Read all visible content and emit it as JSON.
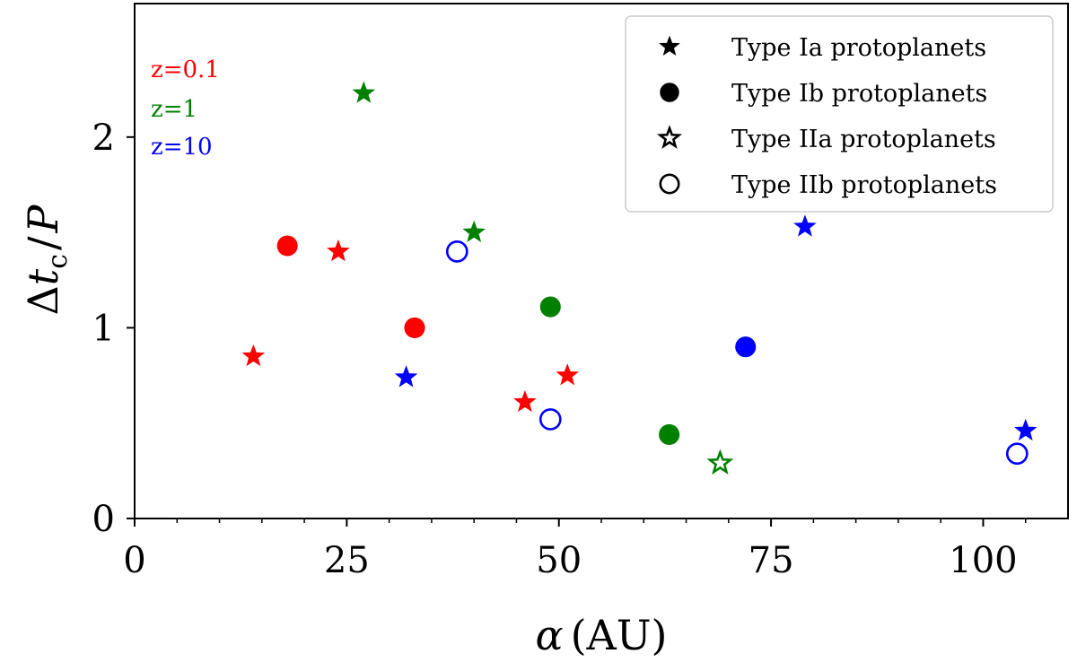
{
  "chart_data": {
    "type": "scatter",
    "title": "",
    "xlabel": "α (AU)",
    "ylabel": "Δt_c / P",
    "xlim": [
      0,
      110
    ],
    "ylim": [
      0,
      2.7
    ],
    "x_ticks": [
      0,
      25,
      50,
      75,
      100
    ],
    "x_tick_labels": [
      "0",
      "25",
      "50",
      "75",
      "100"
    ],
    "x_minor_ticks": [
      5,
      10,
      15,
      20,
      30,
      35,
      40,
      45,
      55,
      60,
      65,
      70,
      80,
      85,
      90,
      95,
      105
    ],
    "y_ticks": [
      0,
      1,
      2
    ],
    "y_tick_labels": [
      "0",
      "1",
      "2"
    ],
    "grid": false,
    "legend_position": "top-right",
    "legend": [
      {
        "label": "Type Ia protoplanets",
        "marker": "star",
        "filled": true
      },
      {
        "label": "Type Ib protoplanets",
        "marker": "circle",
        "filled": true
      },
      {
        "label": "Type IIa protoplanets",
        "marker": "star",
        "filled": false
      },
      {
        "label": "Type IIb protoplanets",
        "marker": "circle",
        "filled": false
      }
    ],
    "color_key": [
      {
        "label": "z=0.1",
        "color": "#ff0000"
      },
      {
        "label": "z=1",
        "color": "#008000"
      },
      {
        "label": "z=10",
        "color": "#0000ff"
      }
    ],
    "series": [
      {
        "name": "z=0.1",
        "color": "#ff0000",
        "points": [
          {
            "x": 14,
            "y": 0.85,
            "marker": "star",
            "filled": true
          },
          {
            "x": 18,
            "y": 1.43,
            "marker": "circle",
            "filled": true
          },
          {
            "x": 24,
            "y": 1.4,
            "marker": "star",
            "filled": true
          },
          {
            "x": 33,
            "y": 1.0,
            "marker": "circle",
            "filled": true
          },
          {
            "x": 46,
            "y": 0.61,
            "marker": "star",
            "filled": true
          },
          {
            "x": 51,
            "y": 0.75,
            "marker": "star",
            "filled": true
          }
        ]
      },
      {
        "name": "z=1",
        "color": "#008000",
        "points": [
          {
            "x": 27,
            "y": 2.23,
            "marker": "star",
            "filled": true
          },
          {
            "x": 40,
            "y": 1.5,
            "marker": "star",
            "filled": true
          },
          {
            "x": 49,
            "y": 1.11,
            "marker": "circle",
            "filled": true
          },
          {
            "x": 63,
            "y": 0.44,
            "marker": "circle",
            "filled": true
          },
          {
            "x": 69,
            "y": 0.29,
            "marker": "star",
            "filled": false
          }
        ]
      },
      {
        "name": "z=10",
        "color": "#0000ff",
        "points": [
          {
            "x": 32,
            "y": 0.74,
            "marker": "star",
            "filled": true
          },
          {
            "x": 38,
            "y": 1.4,
            "marker": "circle",
            "filled": false
          },
          {
            "x": 49,
            "y": 0.52,
            "marker": "circle",
            "filled": false
          },
          {
            "x": 72,
            "y": 0.9,
            "marker": "circle",
            "filled": true
          },
          {
            "x": 79,
            "y": 1.53,
            "marker": "star",
            "filled": true
          },
          {
            "x": 104,
            "y": 0.34,
            "marker": "circle",
            "filled": false
          },
          {
            "x": 105,
            "y": 0.46,
            "marker": "star",
            "filled": true
          }
        ]
      }
    ]
  }
}
